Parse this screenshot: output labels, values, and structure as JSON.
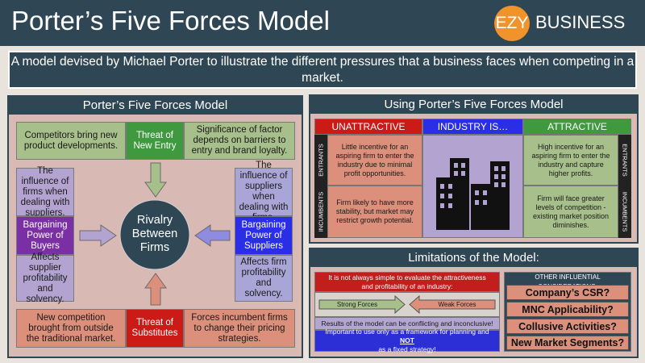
{
  "header": {
    "title": "Porter’s Five Forces Model",
    "logo_mark": "EZY",
    "logo_text": "BUSINESS"
  },
  "intro": "A model devised by Michael Porter to illustrate the different pressures that a business faces when competing in a market.",
  "left_panel": {
    "title": "Porter’s Five Forces Model",
    "top": {
      "left": "Competitors bring new product developments.",
      "center": "Threat of New Entry",
      "right": "Significance of factor depends on barriers to entry and brand loyalty."
    },
    "left": {
      "top": "The influence of firms when dealing with suppliers.",
      "center": "Bargaining Power of Buyers",
      "bottom": "Affects supplier profitability and solvency."
    },
    "right": {
      "top": "The influence of suppliers when dealing with firms.",
      "center": "Bargaining Power of Suppliers",
      "bottom": "Affects firm profitability and solvency."
    },
    "bottom": {
      "left": "New competition brought from outside the traditional market.",
      "center": "Threat of Substitutes",
      "right": "Forces incumbent firms to change their pricing strategies."
    },
    "center": "Rivalry Between Firms"
  },
  "using_panel": {
    "title": "Using Porter’s Five Forces Model",
    "col_unattractive": "UNATTRACTIVE",
    "col_industry": "INDUSTRY IS…",
    "col_attractive": "ATTRACTIVE",
    "row_entrants": "ENTRANTS",
    "row_incumbents": "INCUMBENTS",
    "entrants_unattractive": "Little incentive for an aspiring firm to enter the industry due to minimal profit opportunities.",
    "incumbents_unattractive": "Firm likely to have more stability, but market may restrict growth potential.",
    "entrants_attractive": "High incentive for an aspiring firm to enter the industry and capture higher profits.",
    "incumbents_attractive": "Firm will face greater levels of competition - existing market position diminishes.",
    "icon": "city-buildings-icon"
  },
  "limitations_panel": {
    "title": "Limitations of the Model:",
    "evaluate": "It is not always simple to evaluate the attractiveness and profitability of an industry:",
    "strong": "Strong Forces",
    "weak": "Weak Forces",
    "conflicting": "Results of the model can be conflicting and inconclusive!",
    "framework_a": "Important to use only as a framework for planning and",
    "framework_not": "NOT",
    "framework_b": "as a fixed strategy!",
    "other_head": "OTHER INFLUENTIAL CONSIDERATIONS:",
    "considerations": [
      "Company’s CSR?",
      "MNC Applicability?",
      "Collusive Activities?",
      "New Market Segments?"
    ]
  },
  "colors": {
    "navy": "#2f4655",
    "orange": "#f0932a",
    "red": "#cc1a17",
    "blue": "#2a2ee6",
    "green": "#3f9a3f",
    "purple": "#7b2fa5"
  }
}
